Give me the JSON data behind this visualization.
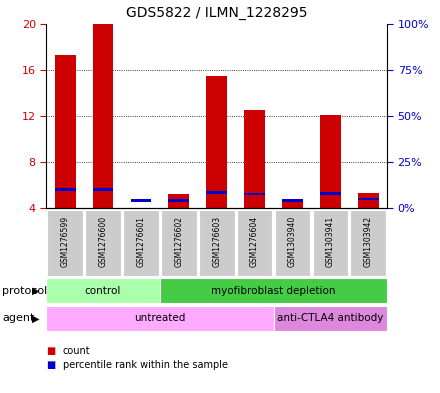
{
  "title": "GDS5822 / ILMN_1228295",
  "samples": [
    "GSM1276599",
    "GSM1276600",
    "GSM1276601",
    "GSM1276602",
    "GSM1276603",
    "GSM1276604",
    "GSM1303940",
    "GSM1303941",
    "GSM1303942"
  ],
  "count_values": [
    17.3,
    20.0,
    4.05,
    5.2,
    15.5,
    12.5,
    4.6,
    12.1,
    5.3
  ],
  "percentile_values": [
    10.3,
    10.3,
    4.1,
    4.3,
    8.6,
    7.8,
    4.15,
    8.1,
    5.1
  ],
  "ylim": [
    4,
    20
  ],
  "y_left_ticks": [
    4,
    8,
    12,
    16,
    20
  ],
  "y_right_ticks": [
    0,
    25,
    50,
    75,
    100
  ],
  "y_right_tick_positions": [
    4,
    8,
    12,
    16,
    20
  ],
  "count_color": "#cc0000",
  "percentile_color": "#0000cc",
  "bar_width": 0.55,
  "protocol_groups": [
    {
      "label": "control",
      "start": 0,
      "end": 3,
      "color": "#aaffaa"
    },
    {
      "label": "myofibroblast depletion",
      "start": 3,
      "end": 9,
      "color": "#44cc44"
    }
  ],
  "agent_groups": [
    {
      "label": "untreated",
      "start": 0,
      "end": 6,
      "color": "#ffaaff"
    },
    {
      "label": "anti-CTLA4 antibody",
      "start": 6,
      "end": 9,
      "color": "#dd88dd"
    }
  ],
  "protocol_label": "protocol",
  "agent_label": "agent",
  "background_color": "#ffffff",
  "plot_bg_color": "#ffffff",
  "grid_color": "#000000",
  "legend_count": "count",
  "legend_percentile": "percentile rank within the sample",
  "sample_box_color": "#cccccc",
  "sample_text_fontsize": 5.5,
  "title_fontsize": 10,
  "ytick_fontsize": 8,
  "row_label_fontsize": 8,
  "row_text_fontsize": 7.5
}
